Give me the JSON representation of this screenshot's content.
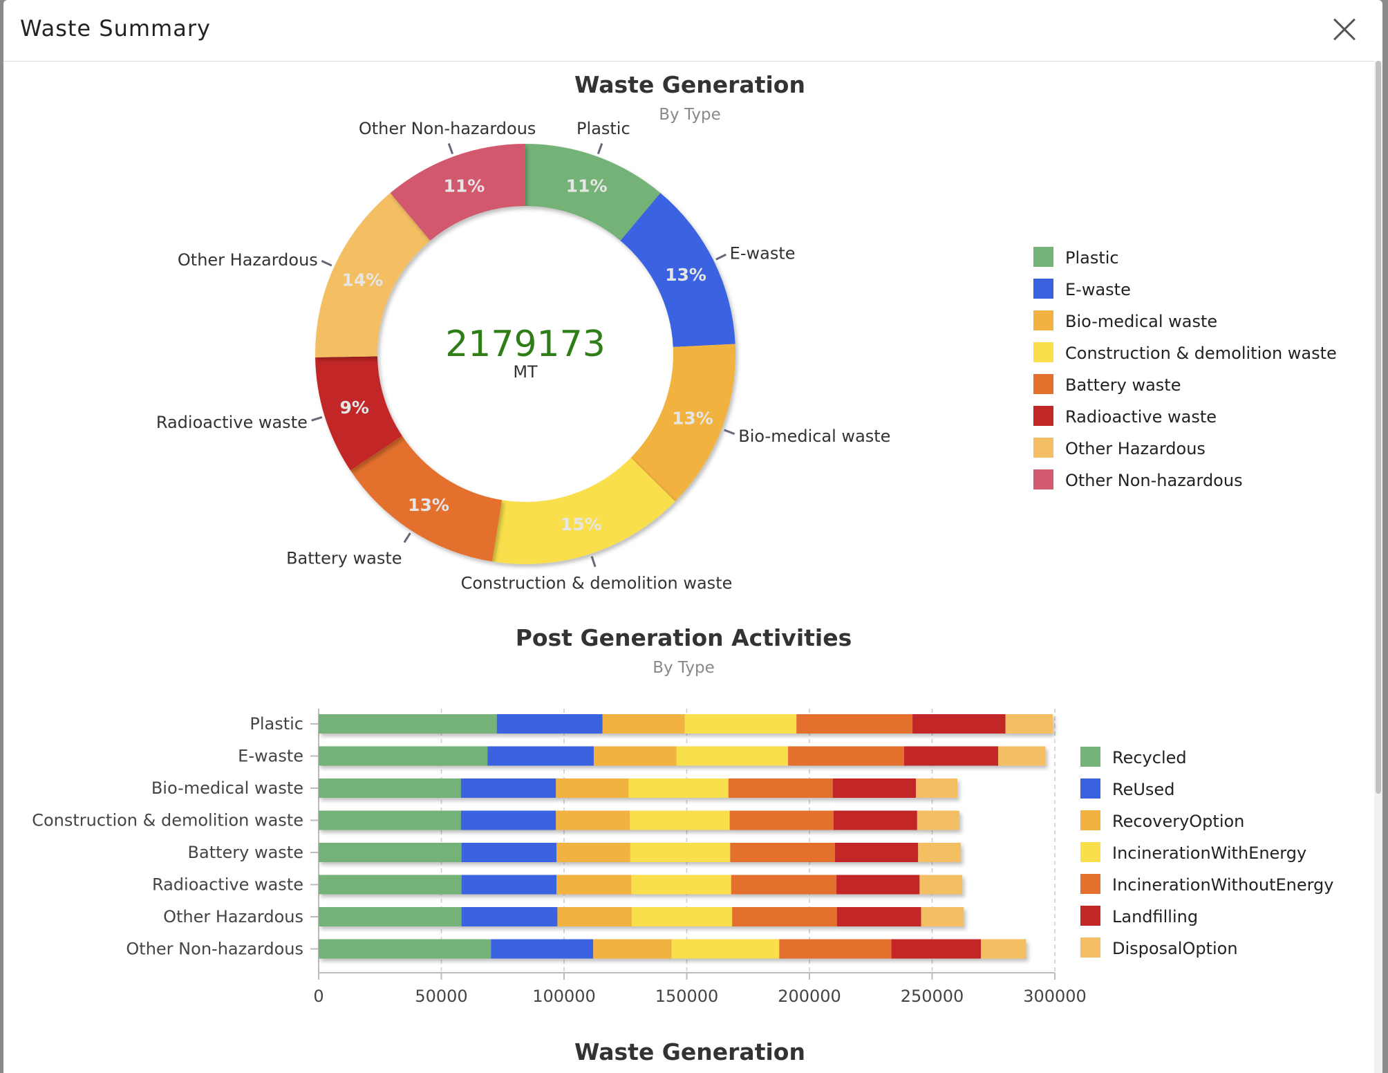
{
  "modal": {
    "title": "Waste Summary",
    "close_icon": "close-icon"
  },
  "chart_data": [
    {
      "type": "pie",
      "variant": "donut",
      "title": "Waste Generation",
      "subtitle": "By Type",
      "center_value": "2179173",
      "center_unit": "MT",
      "center_color": "#2e7d17",
      "categories": [
        "Plastic",
        "E-waste",
        "Bio-medical waste",
        "Construction & demolition waste",
        "Battery waste",
        "Radioactive waste",
        "Other Hazardous",
        "Other Non-hazardous"
      ],
      "values": [
        11,
        13,
        13,
        15,
        13,
        9,
        14,
        11
      ],
      "value_labels": [
        "11%",
        "13%",
        "13%",
        "15%",
        "13%",
        "9%",
        "14%",
        "11%"
      ],
      "colors": [
        "#74b277",
        "#3a62e0",
        "#f2b241",
        "#f8df4b",
        "#e4702d",
        "#c22727",
        "#f4bf64",
        "#d2596e"
      ],
      "legend_position": "right"
    },
    {
      "type": "bar",
      "orientation": "horizontal",
      "stacked": true,
      "title": "Post Generation Activities",
      "subtitle": "By Type",
      "categories": [
        "Plastic",
        "E-waste",
        "Bio-medical waste",
        "Construction & demolition waste",
        "Battery waste",
        "Radioactive waste",
        "Other Hazardous",
        "Other Non-hazardous"
      ],
      "xlim": [
        0,
        300000
      ],
      "xticks": [
        "0",
        "50000",
        "100000",
        "150000",
        "200000",
        "250000",
        "300000"
      ],
      "grid": true,
      "legend_position": "right",
      "series": [
        {
          "name": "Recycled",
          "color": "#74b277",
          "values": [
            72600,
            68800,
            58000,
            58000,
            58200,
            58200,
            58200,
            70200
          ]
        },
        {
          "name": "ReUsed",
          "color": "#3a62e0",
          "values": [
            43100,
            43300,
            38700,
            38700,
            38700,
            38700,
            39100,
            41700
          ]
        },
        {
          "name": "RecoveryOption",
          "color": "#f2b241",
          "values": [
            33500,
            33700,
            29600,
            30100,
            30100,
            30500,
            30300,
            31900
          ]
        },
        {
          "name": "IncinerationWithEnergy",
          "color": "#f8df4b",
          "values": [
            45500,
            45500,
            40700,
            40700,
            40700,
            40700,
            40900,
            43900
          ]
        },
        {
          "name": "IncinerationWithoutEnergy",
          "color": "#e4702d",
          "values": [
            47300,
            47300,
            42500,
            42300,
            42700,
            42900,
            42700,
            45700
          ]
        },
        {
          "name": "Landfilling",
          "color": "#c22727",
          "values": [
            37900,
            38300,
            33900,
            34100,
            33900,
            33900,
            34300,
            36500
          ]
        },
        {
          "name": "DisposalOption",
          "color": "#f4bf64",
          "values": [
            19300,
            19300,
            16900,
            17200,
            17400,
            17400,
            17400,
            18400
          ]
        }
      ]
    }
  ],
  "next_section": {
    "title": "Waste Generation"
  }
}
